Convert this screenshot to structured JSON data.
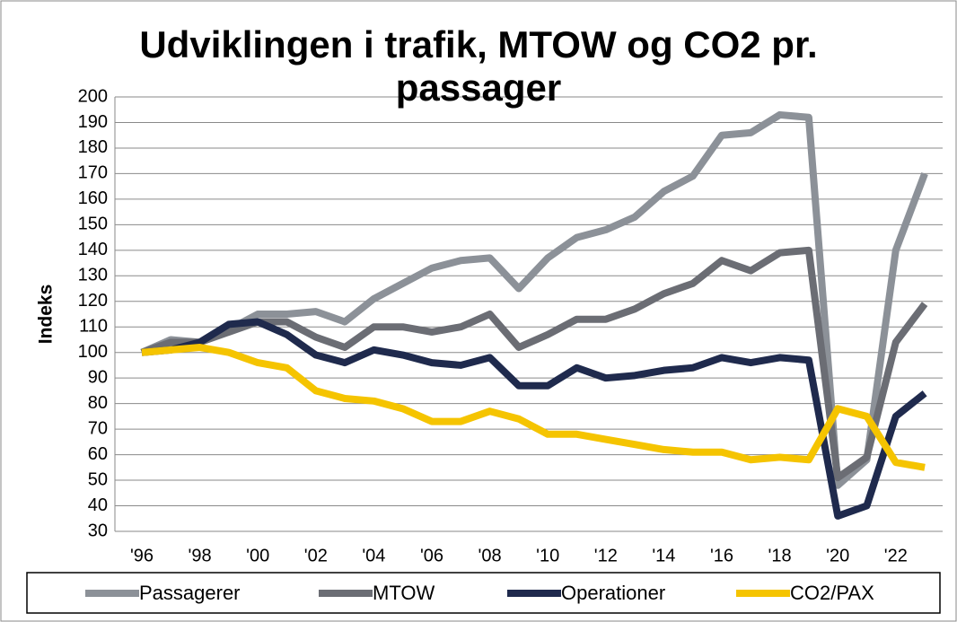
{
  "chart_data": {
    "type": "line",
    "title": "Udviklingen i trafik, MTOW og CO2 pr. passager",
    "y_label": "Indeks",
    "categories": [
      "'96",
      null,
      "'98",
      null,
      "'00",
      null,
      "'02",
      null,
      "'04",
      null,
      "'06",
      null,
      "'08",
      null,
      "'10",
      null,
      "'12",
      null,
      "'14",
      null,
      "'16",
      null,
      "'18",
      null,
      "'20",
      null,
      "'22",
      null
    ],
    "series": [
      {
        "name": "Passagerer",
        "color": "#8c9198",
        "values": [
          100,
          105,
          104,
          109,
          115,
          115,
          116,
          112,
          121,
          127,
          133,
          136,
          137,
          125,
          137,
          145,
          148,
          153,
          163,
          169,
          185,
          186,
          193,
          192,
          48,
          58,
          140,
          170
        ]
      },
      {
        "name": "MTOW",
        "color": "#6b6d74",
        "values": [
          100,
          104,
          104,
          108,
          112,
          112,
          106,
          102,
          110,
          110,
          108,
          110,
          115,
          102,
          107,
          113,
          113,
          117,
          123,
          127,
          136,
          132,
          139,
          140,
          51,
          59,
          104,
          119
        ]
      },
      {
        "name": "Operationer",
        "color": "#1f2a4d",
        "values": [
          100,
          101,
          104,
          111,
          112,
          107,
          99,
          96,
          101,
          99,
          96,
          95,
          98,
          87,
          87,
          94,
          90,
          91,
          93,
          94,
          98,
          96,
          98,
          97,
          36,
          40,
          75,
          84
        ]
      },
      {
        "name": "CO2/PAX",
        "color": "#f5c400",
        "values": [
          100,
          101,
          102,
          100,
          96,
          94,
          85,
          82,
          81,
          78,
          73,
          73,
          77,
          74,
          68,
          68,
          66,
          64,
          62,
          61,
          61,
          58,
          59,
          58,
          78,
          75,
          57,
          55
        ]
      }
    ],
    "ylim": [
      30,
      200
    ],
    "yticks": [
      30,
      40,
      50,
      60,
      70,
      80,
      90,
      100,
      110,
      120,
      130,
      140,
      150,
      160,
      170,
      180,
      190,
      200
    ],
    "grid": true,
    "legend": "bottom"
  }
}
